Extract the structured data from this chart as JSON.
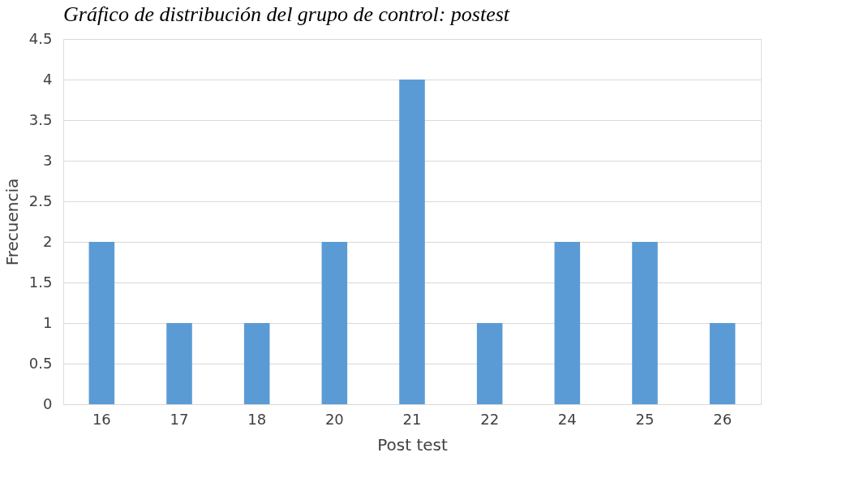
{
  "chart_data": {
    "type": "bar",
    "title": "Gráfico de distribución del grupo de control: postest",
    "xlabel": "Post test",
    "ylabel": "Frecuencia",
    "categories": [
      "16",
      "17",
      "18",
      "20",
      "21",
      "22",
      "24",
      "25",
      "26"
    ],
    "values": [
      2,
      1,
      1,
      2,
      4,
      1,
      2,
      2,
      1
    ],
    "color": "#5b9bd5",
    "ylim": [
      0,
      4.5
    ],
    "yticks": [
      0,
      0.5,
      1,
      1.5,
      2,
      2.5,
      3,
      3.5,
      4,
      4.5
    ],
    "grid": "y"
  }
}
